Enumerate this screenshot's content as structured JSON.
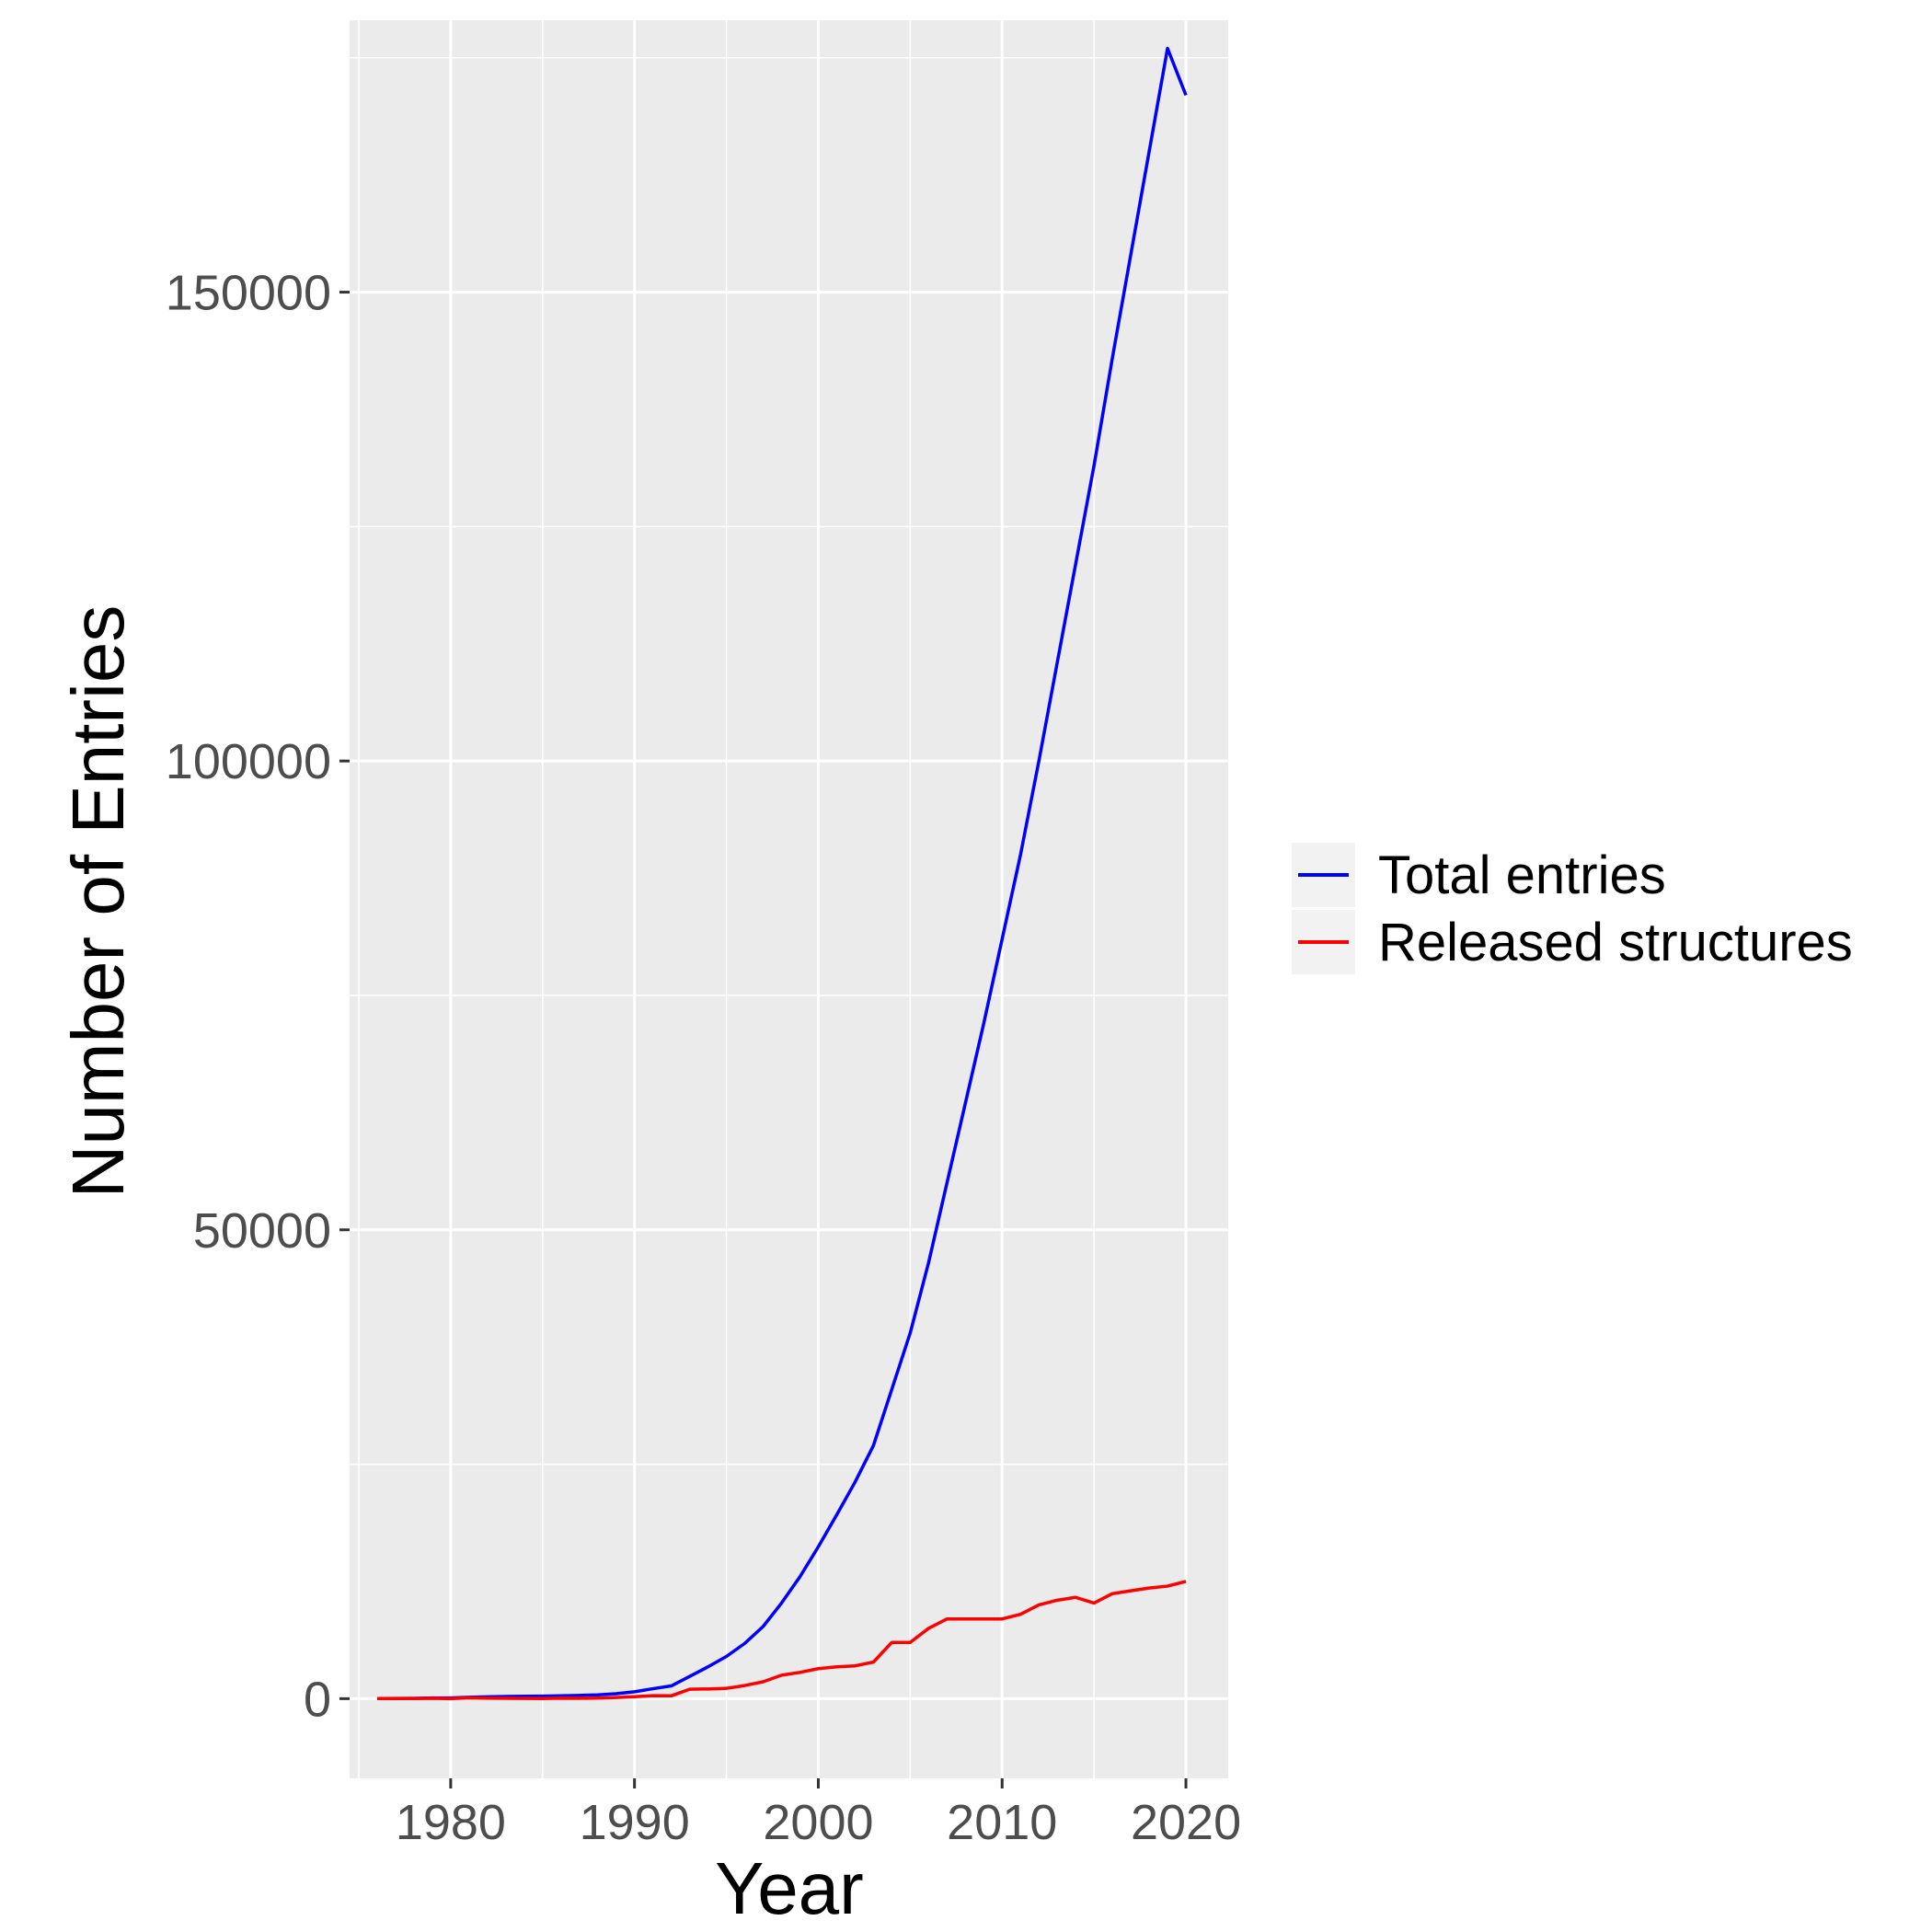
{
  "chart_data": {
    "type": "line",
    "title": "",
    "xlabel": "Year",
    "ylabel": "Number of Entries",
    "xlim": [
      1974.5,
      2022.3
    ],
    "ylim": [
      -8500,
      179000
    ],
    "x_ticks": [
      1980,
      1990,
      2000,
      2010,
      2020
    ],
    "x_tick_labels": [
      "1980",
      "1990",
      "2000",
      "2010",
      "2020"
    ],
    "y_ticks": [
      0,
      50000,
      100000,
      150000
    ],
    "y_tick_labels": [
      "0",
      "50000",
      "100000",
      "150000"
    ],
    "x_minor_ticks": [
      1975,
      1985,
      1995,
      2005,
      2015
    ],
    "y_minor_ticks": [
      25000,
      75000,
      125000,
      175000
    ],
    "grid": true,
    "panel_background": "#ebebeb",
    "gridline_color": "#ffffff",
    "legend_position": "right",
    "legend_key_background": "#f2f2f2",
    "series": [
      {
        "name": "Total entries",
        "color": "#0000ff",
        "points": [
          [
            1976,
            13
          ],
          [
            1977,
            23
          ],
          [
            1978,
            36
          ],
          [
            1979,
            69
          ],
          [
            1980,
            69
          ],
          [
            1981,
            152
          ],
          [
            1982,
            196
          ],
          [
            1983,
            233
          ],
          [
            1984,
            256
          ],
          [
            1985,
            265
          ],
          [
            1986,
            311
          ],
          [
            1987,
            346
          ],
          [
            1988,
            407
          ],
          [
            1989,
            528
          ],
          [
            1990,
            734
          ],
          [
            1991,
            1058
          ],
          [
            1992,
            1359
          ],
          [
            1993,
            2367
          ],
          [
            1994,
            3400
          ],
          [
            1995,
            4499
          ],
          [
            1996,
            5900
          ],
          [
            1997,
            7700
          ],
          [
            1998,
            10200
          ],
          [
            1999,
            13000
          ],
          [
            2000,
            16200
          ],
          [
            2001,
            19600
          ],
          [
            2002,
            23100
          ],
          [
            2003,
            27000
          ],
          [
            2004,
            33000
          ],
          [
            2005,
            39000
          ],
          [
            2006,
            46500
          ],
          [
            2007,
            55000
          ],
          [
            2008,
            63500
          ],
          [
            2009,
            72000
          ],
          [
            2010,
            81000
          ],
          [
            2011,
            90000
          ],
          [
            2012,
            100000
          ],
          [
            2013,
            110500
          ],
          [
            2014,
            121000
          ],
          [
            2015,
            131500
          ],
          [
            2016,
            143000
          ],
          [
            2017,
            154000
          ],
          [
            2018,
            165000
          ],
          [
            2019,
            176000
          ],
          [
            2020,
            171000
          ]
        ]
      },
      {
        "name": "Released structures",
        "color": "#ff0000",
        "points": [
          [
            1976,
            13
          ],
          [
            1977,
            10
          ],
          [
            1978,
            13
          ],
          [
            1979,
            33
          ],
          [
            1980,
            0
          ],
          [
            1981,
            83
          ],
          [
            1982,
            44
          ],
          [
            1983,
            37
          ],
          [
            1984,
            23
          ],
          [
            1985,
            9
          ],
          [
            1986,
            46
          ],
          [
            1987,
            35
          ],
          [
            1988,
            61
          ],
          [
            1989,
            121
          ],
          [
            1990,
            206
          ],
          [
            1991,
            324
          ],
          [
            1992,
            301
          ],
          [
            1993,
            1008
          ],
          [
            1994,
            1033
          ],
          [
            1995,
            1099
          ],
          [
            1996,
            1401
          ],
          [
            1997,
            1800
          ],
          [
            1998,
            2500
          ],
          [
            1999,
            2800
          ],
          [
            2000,
            3200
          ],
          [
            2001,
            3400
          ],
          [
            2002,
            3500
          ],
          [
            2003,
            3900
          ],
          [
            2004,
            6000
          ],
          [
            2005,
            6000
          ],
          [
            2006,
            7500
          ],
          [
            2007,
            8500
          ],
          [
            2008,
            8500
          ],
          [
            2009,
            8500
          ],
          [
            2010,
            8500
          ],
          [
            2011,
            9000
          ],
          [
            2012,
            10000
          ],
          [
            2013,
            10500
          ],
          [
            2014,
            10800
          ],
          [
            2015,
            10200
          ],
          [
            2016,
            11200
          ],
          [
            2017,
            11500
          ],
          [
            2018,
            11800
          ],
          [
            2019,
            12000
          ],
          [
            2020,
            12500
          ]
        ]
      }
    ]
  }
}
